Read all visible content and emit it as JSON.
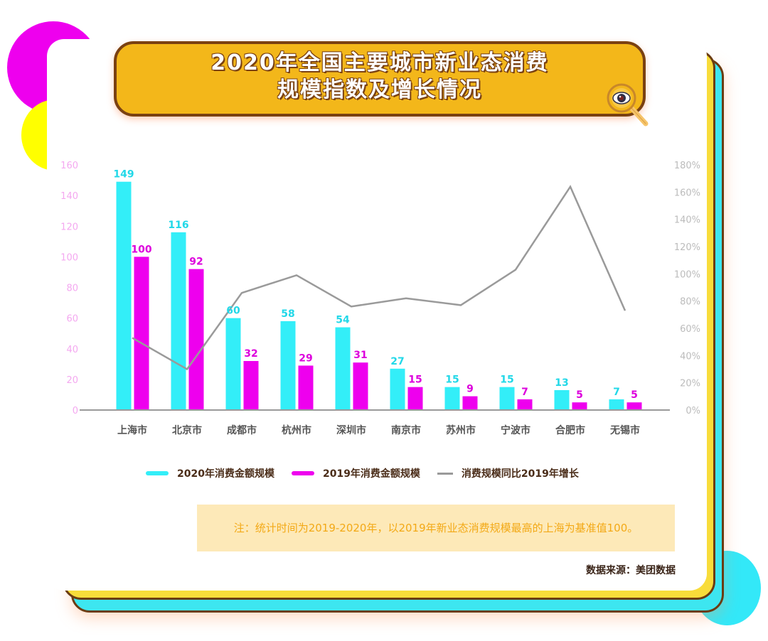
{
  "title": {
    "line1": "2020年全国主要城市新业态消费",
    "line2": "规模指数及增长情况",
    "icon": "magnifier-eye-icon"
  },
  "colors": {
    "series_2020": "#33eef8",
    "series_2019": "#ee00ee",
    "growth_line": "#9a9a9a",
    "left_axis_text": "#f4a8f0",
    "right_axis_text": "#bcbcbc",
    "title_bg": "#f3b71a",
    "title_border": "#7a4112",
    "note_bg": "#fde9b8",
    "note_text": "#f3a916"
  },
  "chart_data": {
    "type": "bar",
    "title": "2020年全国主要城市新业态消费规模指数及增长情况",
    "categories": [
      "上海市",
      "北京市",
      "成都市",
      "杭州市",
      "深圳市",
      "南京市",
      "苏州市",
      "宁波市",
      "合肥市",
      "无锡市"
    ],
    "series": [
      {
        "name": "2020年消费金额规模",
        "type": "bar",
        "axis": "left",
        "values": [
          149,
          116,
          60,
          58,
          54,
          27,
          15,
          15,
          13,
          7
        ]
      },
      {
        "name": "2019年消费金额规模",
        "type": "bar",
        "axis": "left",
        "values": [
          100,
          92,
          32,
          29,
          31,
          15,
          9,
          7,
          5,
          5
        ]
      },
      {
        "name": "消费规模同比2019年增长",
        "type": "line",
        "axis": "right",
        "unit": "%",
        "values": [
          53,
          30,
          86,
          99,
          76,
          82,
          77,
          103,
          164,
          73
        ]
      }
    ],
    "left_axis": {
      "ylim": [
        0,
        160
      ],
      "ticks": [
        "0",
        "20",
        "40",
        "60",
        "80",
        "100",
        "120",
        "140",
        "160"
      ]
    },
    "right_axis": {
      "ylim": [
        0,
        180
      ],
      "ticks": [
        "0%",
        "20%",
        "40%",
        "60%",
        "80%",
        "100%",
        "120%",
        "140%",
        "160%",
        "180%"
      ]
    },
    "xlabel": "",
    "ylabel": "",
    "grid": false,
    "legend_position": "bottom"
  },
  "legend": [
    {
      "label": "2020年消费金额规模",
      "kind": "bar"
    },
    {
      "label": "2019年消费金额规模",
      "kind": "bar"
    },
    {
      "label": "消费规模同比2019年增长",
      "kind": "line"
    }
  ],
  "note": "注：统计时间为2019-2020年，以2019年新业态消费规模最高的上海为基准值100。",
  "source": "数据来源：美团数据"
}
